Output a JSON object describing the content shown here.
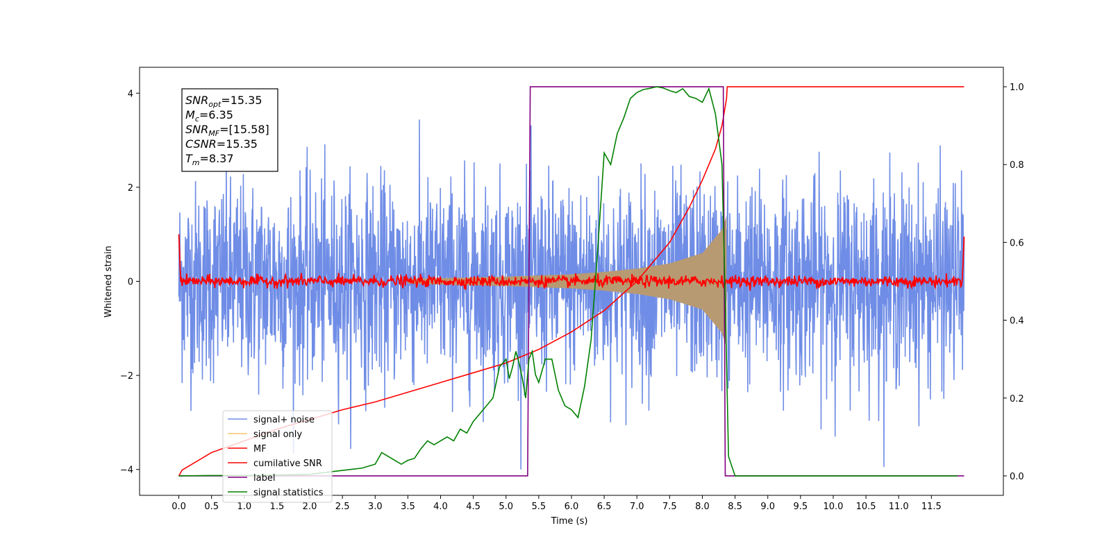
{
  "chart_data": {
    "type": "line",
    "xlabel": "Time (s)",
    "ylabel": "Whitened strain",
    "xlim": [
      -0.6,
      12.6
    ],
    "ylim": [
      -4.55,
      4.55
    ],
    "y2lim": [
      -0.05,
      1.05
    ],
    "x_ticks": [
      0.0,
      0.5,
      1.0,
      1.5,
      2.0,
      2.5,
      3.0,
      3.5,
      4.0,
      4.5,
      5.0,
      5.5,
      6.0,
      6.5,
      7.0,
      7.5,
      8.0,
      8.5,
      9.0,
      9.5,
      10.0,
      10.5,
      11.0,
      11.5
    ],
    "x_tick_labels": [
      "0.0",
      "0.5",
      "1.0",
      "1.5",
      "2.0",
      "2.5",
      "3.0",
      "3.5",
      "4.0",
      "4.5",
      "5.0",
      "5.5",
      "6.0",
      "6.5",
      "7.0",
      "7.5",
      "8.0",
      "8.5",
      "9.0",
      "9.5",
      "10.0",
      "10.5",
      "11.0",
      "11.5"
    ],
    "y_ticks": [
      -4,
      -2,
      0,
      2,
      4
    ],
    "y_tick_labels": [
      "−4",
      "−2",
      "0",
      "2",
      "4"
    ],
    "y2_ticks": [
      0.0,
      0.2,
      0.4,
      0.6,
      0.8,
      1.0
    ],
    "y2_tick_labels": [
      "0.0",
      "0.2",
      "0.4",
      "0.6",
      "0.8",
      "1.0"
    ],
    "legend_position": "lower-left",
    "annotation": {
      "lines": [
        {
          "var": "SNR",
          "sub": "opt",
          "value": "=15.35"
        },
        {
          "var": "M",
          "sub": "c",
          "value": "=6.35"
        },
        {
          "var": "SNR",
          "sub": "MF",
          "value": "=[15.58]"
        },
        {
          "var": "CSNR",
          "sub": "",
          "value": "=15.35"
        },
        {
          "var": "T",
          "sub": "m",
          "value": "=8.37"
        }
      ]
    },
    "series": [
      {
        "name": "signal+ noise",
        "color": "#6f8de6",
        "axis": "left",
        "style": "noise",
        "x_range": [
          0.0,
          12.0
        ],
        "amplitude_sigma": 1.0,
        "peak_range": [
          -4.0,
          4.15
        ]
      },
      {
        "name": "signal only",
        "color": "#f5c56a",
        "axis": "left",
        "style": "chirp",
        "x_range": [
          3.5,
          8.37
        ],
        "x": [
          3.5,
          5.0,
          6.0,
          6.5,
          7.0,
          7.5,
          8.0,
          8.3,
          8.37
        ],
        "envelope": [
          0.05,
          0.1,
          0.15,
          0.2,
          0.27,
          0.38,
          0.6,
          1.1,
          1.4
        ]
      },
      {
        "name": "MF",
        "color": "#ff0000",
        "axis": "left",
        "style": "noise",
        "x_range": [
          0.0,
          12.0
        ],
        "amplitude_sigma": 0.06,
        "edge_values": [
          1.0,
          0.95
        ]
      },
      {
        "name": "cumilative SNR",
        "color": "#ff0000",
        "axis": "right",
        "x": [
          0.0,
          0.05,
          0.5,
          1.0,
          1.5,
          2.0,
          2.5,
          3.0,
          3.5,
          4.0,
          4.5,
          5.0,
          5.5,
          6.0,
          6.5,
          7.0,
          7.5,
          7.8,
          8.0,
          8.2,
          8.3,
          8.37,
          8.38,
          12.0
        ],
        "y": [
          0.0,
          0.015,
          0.06,
          0.09,
          0.12,
          0.145,
          0.17,
          0.19,
          0.215,
          0.24,
          0.265,
          0.29,
          0.325,
          0.37,
          0.425,
          0.5,
          0.6,
          0.69,
          0.76,
          0.84,
          0.9,
          0.97,
          1.0,
          1.0
        ]
      },
      {
        "name": "label",
        "color": "#800080",
        "axis": "right",
        "x": [
          0.0,
          5.33,
          5.37,
          8.32,
          8.35,
          12.0
        ],
        "y": [
          0.0,
          0.0,
          1.0,
          1.0,
          0.0,
          0.0
        ]
      },
      {
        "name": "signal statistics",
        "color": "#008000",
        "axis": "right",
        "x": [
          0.0,
          0.5,
          1.0,
          1.5,
          2.0,
          2.3,
          2.5,
          2.8,
          3.0,
          3.1,
          3.2,
          3.3,
          3.4,
          3.5,
          3.6,
          3.7,
          3.8,
          3.9,
          4.0,
          4.1,
          4.2,
          4.3,
          4.4,
          4.5,
          4.6,
          4.7,
          4.8,
          4.9,
          5.0,
          5.05,
          5.1,
          5.15,
          5.2,
          5.25,
          5.3,
          5.35,
          5.4,
          5.45,
          5.5,
          5.6,
          5.7,
          5.8,
          5.9,
          6.0,
          6.1,
          6.2,
          6.3,
          6.4,
          6.5,
          6.6,
          6.7,
          6.8,
          6.9,
          7.0,
          7.1,
          7.2,
          7.3,
          7.4,
          7.5,
          7.6,
          7.7,
          7.8,
          7.9,
          8.0,
          8.1,
          8.2,
          8.3,
          8.35,
          8.4,
          8.5,
          9.0,
          10.0,
          11.0,
          11.9
        ],
        "y": [
          0.0,
          0.001,
          0.001,
          0.002,
          0.004,
          0.01,
          0.014,
          0.02,
          0.03,
          0.06,
          0.05,
          0.04,
          0.03,
          0.04,
          0.045,
          0.07,
          0.09,
          0.08,
          0.09,
          0.1,
          0.09,
          0.12,
          0.11,
          0.14,
          0.16,
          0.18,
          0.2,
          0.28,
          0.3,
          0.25,
          0.28,
          0.32,
          0.29,
          0.25,
          0.2,
          0.3,
          0.32,
          0.26,
          0.24,
          0.3,
          0.3,
          0.22,
          0.18,
          0.17,
          0.15,
          0.23,
          0.35,
          0.58,
          0.83,
          0.8,
          0.88,
          0.92,
          0.97,
          0.985,
          0.993,
          0.996,
          1.0,
          0.997,
          0.99,
          0.985,
          0.995,
          0.975,
          0.97,
          0.96,
          0.995,
          0.93,
          0.8,
          0.45,
          0.05,
          0.0,
          0.0,
          0.0,
          0.0,
          0.0
        ]
      }
    ]
  }
}
